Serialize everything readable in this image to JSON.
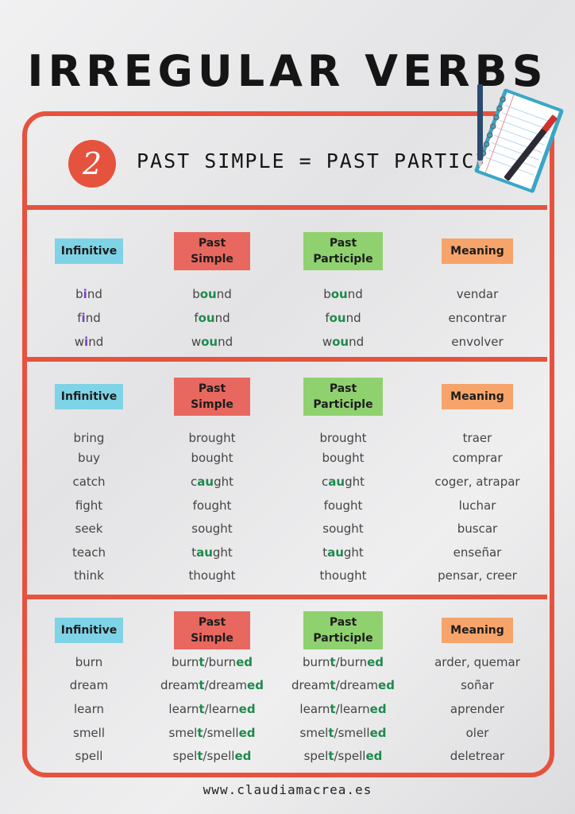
{
  "title": "IRREGULAR VERBS",
  "badge": "2",
  "subtitle": "PAST SIMPLE = PAST PARTICIPLE",
  "highlight_colors": [
    "#7a3dc8",
    "#1e8a4c",
    "#1e8a4c"
  ],
  "sections": [
    {
      "headers": [
        "Infinitive",
        "Past Simple",
        "Past Participle",
        "Meaning"
      ],
      "rows": [
        [
          [
            "b",
            "i",
            "nd"
          ],
          [
            "b",
            "ou",
            "nd"
          ],
          [
            "b",
            "ou",
            "nd"
          ],
          [
            "vendar"
          ]
        ],
        [
          [
            "f",
            "i",
            "nd"
          ],
          [
            "f",
            "ou",
            "nd"
          ],
          [
            "f",
            "ou",
            "nd"
          ],
          [
            "encontrar"
          ]
        ],
        [
          [
            "w",
            "i",
            "nd"
          ],
          [
            "w",
            "ou",
            "nd"
          ],
          [
            "w",
            "ou",
            "nd"
          ],
          [
            "envolver"
          ]
        ]
      ]
    },
    {
      "headers": [
        "Infinitive",
        "Past Simple",
        "Past Participle",
        "Meaning"
      ],
      "rows": [
        [
          [
            "bring"
          ],
          [
            "brought"
          ],
          [
            "brought"
          ],
          [
            "traer"
          ]
        ],
        [
          [
            "buy"
          ],
          [
            "bought"
          ],
          [
            "bought"
          ],
          [
            "comprar"
          ]
        ],
        [
          [
            "catch"
          ],
          [
            "c",
            "au",
            "ght"
          ],
          [
            "c",
            "au",
            "ght"
          ],
          [
            "coger, atrapar"
          ]
        ],
        [
          [
            "fight"
          ],
          [
            "fought"
          ],
          [
            "fought"
          ],
          [
            "luchar"
          ]
        ],
        [
          [
            "seek"
          ],
          [
            "sought"
          ],
          [
            "sought"
          ],
          [
            "buscar"
          ]
        ],
        [
          [
            "teach"
          ],
          [
            "t",
            "au",
            "ght"
          ],
          [
            "t",
            "au",
            "ght"
          ],
          [
            "enseñar"
          ]
        ],
        [
          [
            "think"
          ],
          [
            "thought"
          ],
          [
            "thought"
          ],
          [
            "pensar, creer"
          ]
        ]
      ]
    },
    {
      "headers": [
        "Infinitive",
        "Past Simple",
        "Past Participle",
        "Meaning"
      ],
      "rows": [
        [
          [
            "burn"
          ],
          [
            "burn",
            "t",
            "/burn",
            "ed"
          ],
          [
            "burn",
            "t",
            "/burn",
            "ed"
          ],
          [
            "arder, quemar"
          ]
        ],
        [
          [
            "dream"
          ],
          [
            "dream",
            "t",
            "/dream",
            "ed"
          ],
          [
            "dream",
            "t",
            "/dream",
            "ed"
          ],
          [
            "soñar"
          ]
        ],
        [
          [
            "learn"
          ],
          [
            "learn",
            "t",
            "/learn",
            "ed"
          ],
          [
            "learn",
            "t",
            "/learn",
            "ed"
          ],
          [
            "aprender"
          ]
        ],
        [
          [
            "smell"
          ],
          [
            "smel",
            "t",
            "/smell",
            "ed"
          ],
          [
            "smel",
            "t",
            "/smell",
            "ed"
          ],
          [
            "oler"
          ]
        ],
        [
          [
            "spell"
          ],
          [
            "spel",
            "t",
            "/spell",
            "ed"
          ],
          [
            "spel",
            "t",
            "/spell",
            "ed"
          ],
          [
            "deletrear"
          ]
        ]
      ]
    }
  ],
  "footer": "www.claudiamacrea.es"
}
